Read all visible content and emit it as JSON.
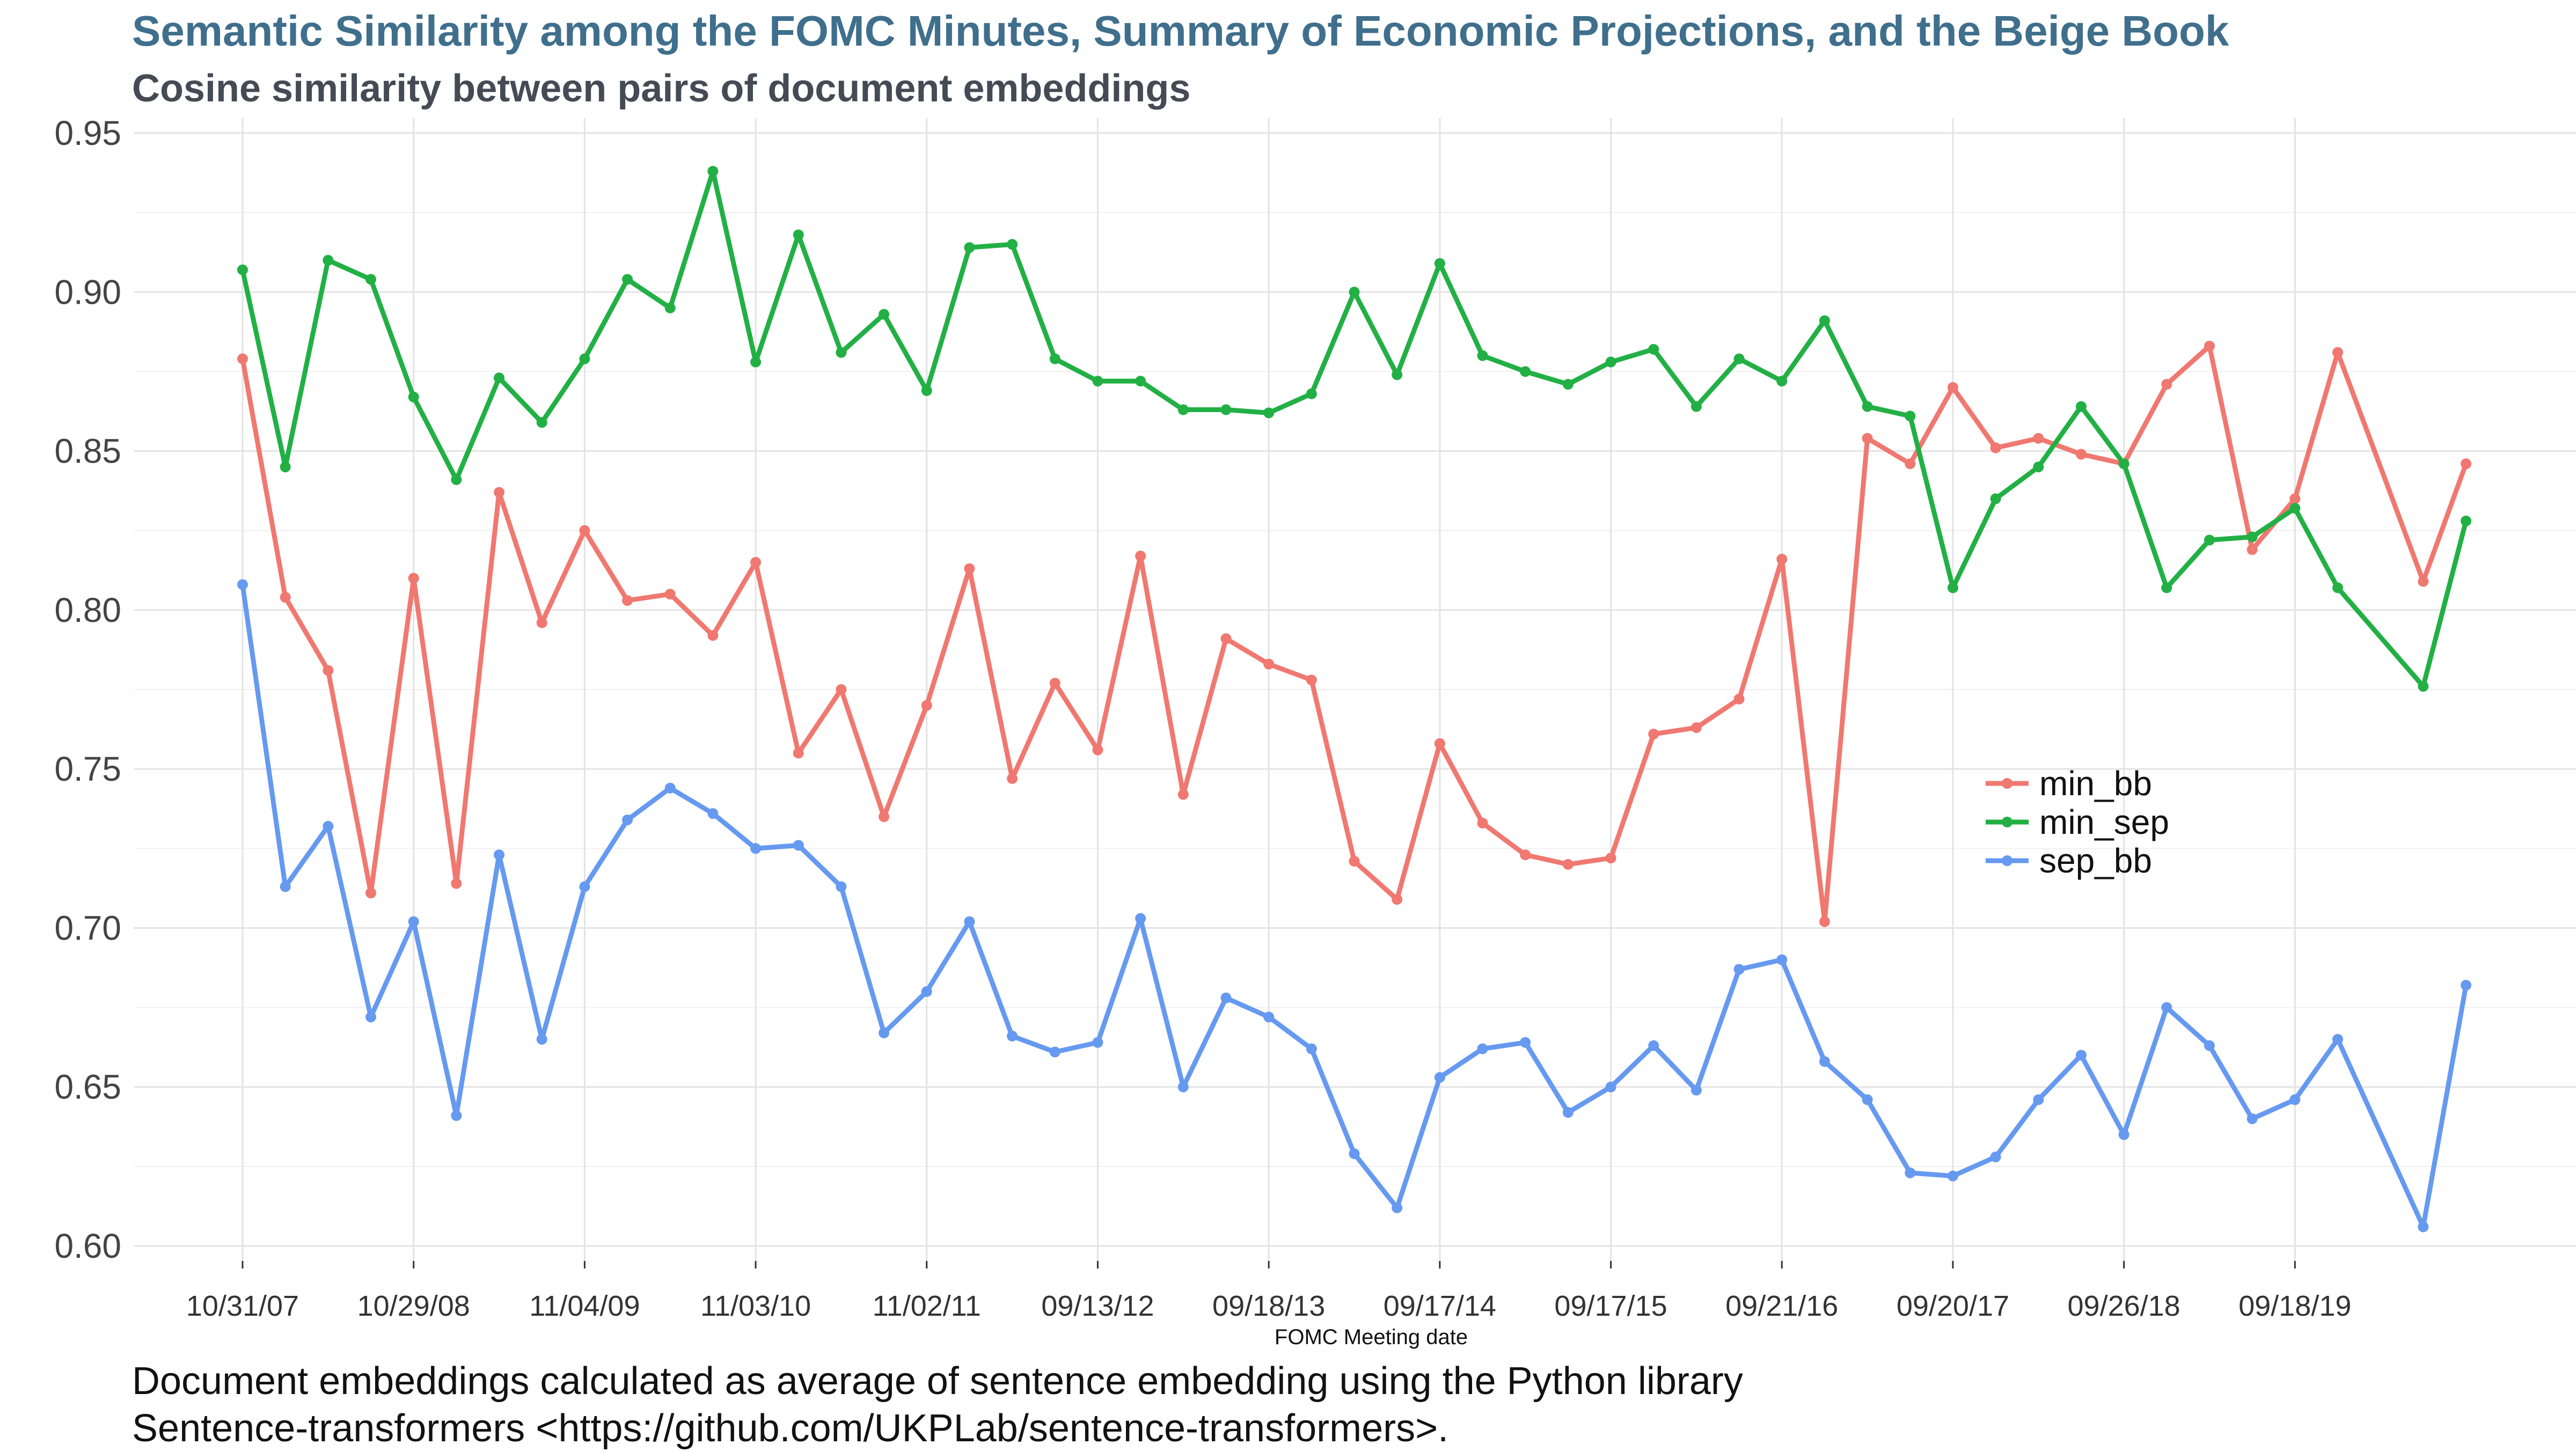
{
  "chart_data": {
    "type": "line",
    "title": "Semantic Similarity among the FOMC Minutes, Summary of Economic Projections, and the Beige Book",
    "subtitle": "Cosine similarity between pairs of document embeddings",
    "xlabel": "FOMC Meeting date",
    "ylabel": "",
    "ylim": [
      0.6,
      0.95
    ],
    "y_ticks": [
      "0.60",
      "0.65",
      "0.70",
      "0.75",
      "0.80",
      "0.85",
      "0.90",
      "0.95"
    ],
    "x_ticks": [
      {
        "label": "10/31/07",
        "index": 0
      },
      {
        "label": "10/29/08",
        "index": 4
      },
      {
        "label": "11/04/09",
        "index": 8
      },
      {
        "label": "11/03/10",
        "index": 12
      },
      {
        "label": "11/02/11",
        "index": 16
      },
      {
        "label": "09/13/12",
        "index": 20
      },
      {
        "label": "09/18/13",
        "index": 24
      },
      {
        "label": "09/17/14",
        "index": 28
      },
      {
        "label": "09/17/15",
        "index": 32
      },
      {
        "label": "09/21/16",
        "index": 36
      },
      {
        "label": "09/20/17",
        "index": 40
      },
      {
        "label": "09/26/18",
        "index": 44
      },
      {
        "label": "09/18/19",
        "index": 48
      }
    ],
    "x_count": 53,
    "grid": true,
    "legend_position": "right",
    "series": [
      {
        "name": "min_bb",
        "color": "#f07870",
        "points": [
          [
            0,
            0.879
          ],
          [
            1,
            0.804
          ],
          [
            2,
            0.781
          ],
          [
            3,
            0.711
          ],
          [
            4,
            0.81
          ],
          [
            5,
            0.714
          ],
          [
            6,
            0.837
          ],
          [
            7,
            0.796
          ],
          [
            8,
            0.825
          ],
          [
            9,
            0.803
          ],
          [
            10,
            0.805
          ],
          [
            11,
            0.792
          ],
          [
            12,
            0.815
          ],
          [
            13,
            0.755
          ],
          [
            14,
            0.775
          ],
          [
            15,
            0.735
          ],
          [
            16,
            0.77
          ],
          [
            17,
            0.813
          ],
          [
            18,
            0.747
          ],
          [
            19,
            0.777
          ],
          [
            20,
            0.756
          ],
          [
            21,
            0.817
          ],
          [
            22,
            0.742
          ],
          [
            23,
            0.791
          ],
          [
            24,
            0.783
          ],
          [
            25,
            0.778
          ],
          [
            26,
            0.721
          ],
          [
            27,
            0.709
          ],
          [
            28,
            0.758
          ],
          [
            29,
            0.733
          ],
          [
            30,
            0.723
          ],
          [
            31,
            0.72
          ],
          [
            32,
            0.722
          ],
          [
            33,
            0.761
          ],
          [
            34,
            0.763
          ],
          [
            35,
            0.772
          ],
          [
            36,
            0.816
          ],
          [
            37,
            0.702
          ],
          [
            38,
            0.854
          ],
          [
            39,
            0.846
          ],
          [
            40,
            0.87
          ],
          [
            41,
            0.851
          ],
          [
            42,
            0.854
          ],
          [
            43,
            0.849
          ],
          [
            44,
            0.846
          ],
          [
            45,
            0.871
          ],
          [
            46,
            0.883
          ],
          [
            47,
            0.819
          ],
          [
            48,
            0.835
          ],
          [
            49,
            0.881
          ],
          [
            51,
            0.809
          ],
          [
            52,
            0.846
          ]
        ]
      },
      {
        "name": "min_sep",
        "color": "#22b045",
        "points": [
          [
            0,
            0.907
          ],
          [
            1,
            0.845
          ],
          [
            2,
            0.91
          ],
          [
            3,
            0.904
          ],
          [
            4,
            0.867
          ],
          [
            5,
            0.841
          ],
          [
            6,
            0.873
          ],
          [
            7,
            0.859
          ],
          [
            8,
            0.879
          ],
          [
            9,
            0.904
          ],
          [
            10,
            0.895
          ],
          [
            11,
            0.938
          ],
          [
            12,
            0.878
          ],
          [
            13,
            0.918
          ],
          [
            14,
            0.881
          ],
          [
            15,
            0.893
          ],
          [
            16,
            0.869
          ],
          [
            17,
            0.914
          ],
          [
            18,
            0.915
          ],
          [
            19,
            0.879
          ],
          [
            20,
            0.872
          ],
          [
            21,
            0.872
          ],
          [
            22,
            0.863
          ],
          [
            23,
            0.863
          ],
          [
            24,
            0.862
          ],
          [
            25,
            0.868
          ],
          [
            26,
            0.9
          ],
          [
            27,
            0.874
          ],
          [
            28,
            0.909
          ],
          [
            29,
            0.88
          ],
          [
            30,
            0.875
          ],
          [
            31,
            0.871
          ],
          [
            32,
            0.878
          ],
          [
            33,
            0.882
          ],
          [
            34,
            0.864
          ],
          [
            35,
            0.879
          ],
          [
            36,
            0.872
          ],
          [
            37,
            0.891
          ],
          [
            38,
            0.864
          ],
          [
            39,
            0.861
          ],
          [
            40,
            0.807
          ],
          [
            41,
            0.835
          ],
          [
            42,
            0.845
          ],
          [
            43,
            0.864
          ],
          [
            44,
            0.846
          ],
          [
            45,
            0.807
          ],
          [
            46,
            0.822
          ],
          [
            47,
            0.823
          ],
          [
            48,
            0.832
          ],
          [
            49,
            0.807
          ],
          [
            51,
            0.776
          ],
          [
            52,
            0.828
          ]
        ]
      },
      {
        "name": "sep_bb",
        "color": "#6699f0",
        "points": [
          [
            0,
            0.808
          ],
          [
            1,
            0.713
          ],
          [
            2,
            0.732
          ],
          [
            3,
            0.672
          ],
          [
            4,
            0.702
          ],
          [
            5,
            0.641
          ],
          [
            6,
            0.723
          ],
          [
            7,
            0.665
          ],
          [
            8,
            0.713
          ],
          [
            9,
            0.734
          ],
          [
            10,
            0.744
          ],
          [
            11,
            0.736
          ],
          [
            12,
            0.725
          ],
          [
            13,
            0.726
          ],
          [
            14,
            0.713
          ],
          [
            15,
            0.667
          ],
          [
            16,
            0.68
          ],
          [
            17,
            0.702
          ],
          [
            18,
            0.666
          ],
          [
            19,
            0.661
          ],
          [
            20,
            0.664
          ],
          [
            21,
            0.703
          ],
          [
            22,
            0.65
          ],
          [
            23,
            0.678
          ],
          [
            24,
            0.672
          ],
          [
            25,
            0.662
          ],
          [
            26,
            0.629
          ],
          [
            27,
            0.612
          ],
          [
            28,
            0.653
          ],
          [
            29,
            0.662
          ],
          [
            30,
            0.664
          ],
          [
            31,
            0.642
          ],
          [
            32,
            0.65
          ],
          [
            33,
            0.663
          ],
          [
            34,
            0.649
          ],
          [
            35,
            0.687
          ],
          [
            36,
            0.69
          ],
          [
            37,
            0.658
          ],
          [
            38,
            0.646
          ],
          [
            39,
            0.623
          ],
          [
            40,
            0.622
          ],
          [
            41,
            0.628
          ],
          [
            42,
            0.646
          ],
          [
            43,
            0.66
          ],
          [
            44,
            0.635
          ],
          [
            45,
            0.675
          ],
          [
            46,
            0.663
          ],
          [
            47,
            0.64
          ],
          [
            48,
            0.646
          ],
          [
            49,
            0.665
          ],
          [
            51,
            0.606
          ],
          [
            52,
            0.682
          ]
        ]
      }
    ]
  },
  "caption": {
    "line1": "Document embeddings calculated as average of sentence embedding using the Python library",
    "line2": "Sentence-transformers <https://github.com/UKPLab/sentence-transformers>."
  }
}
